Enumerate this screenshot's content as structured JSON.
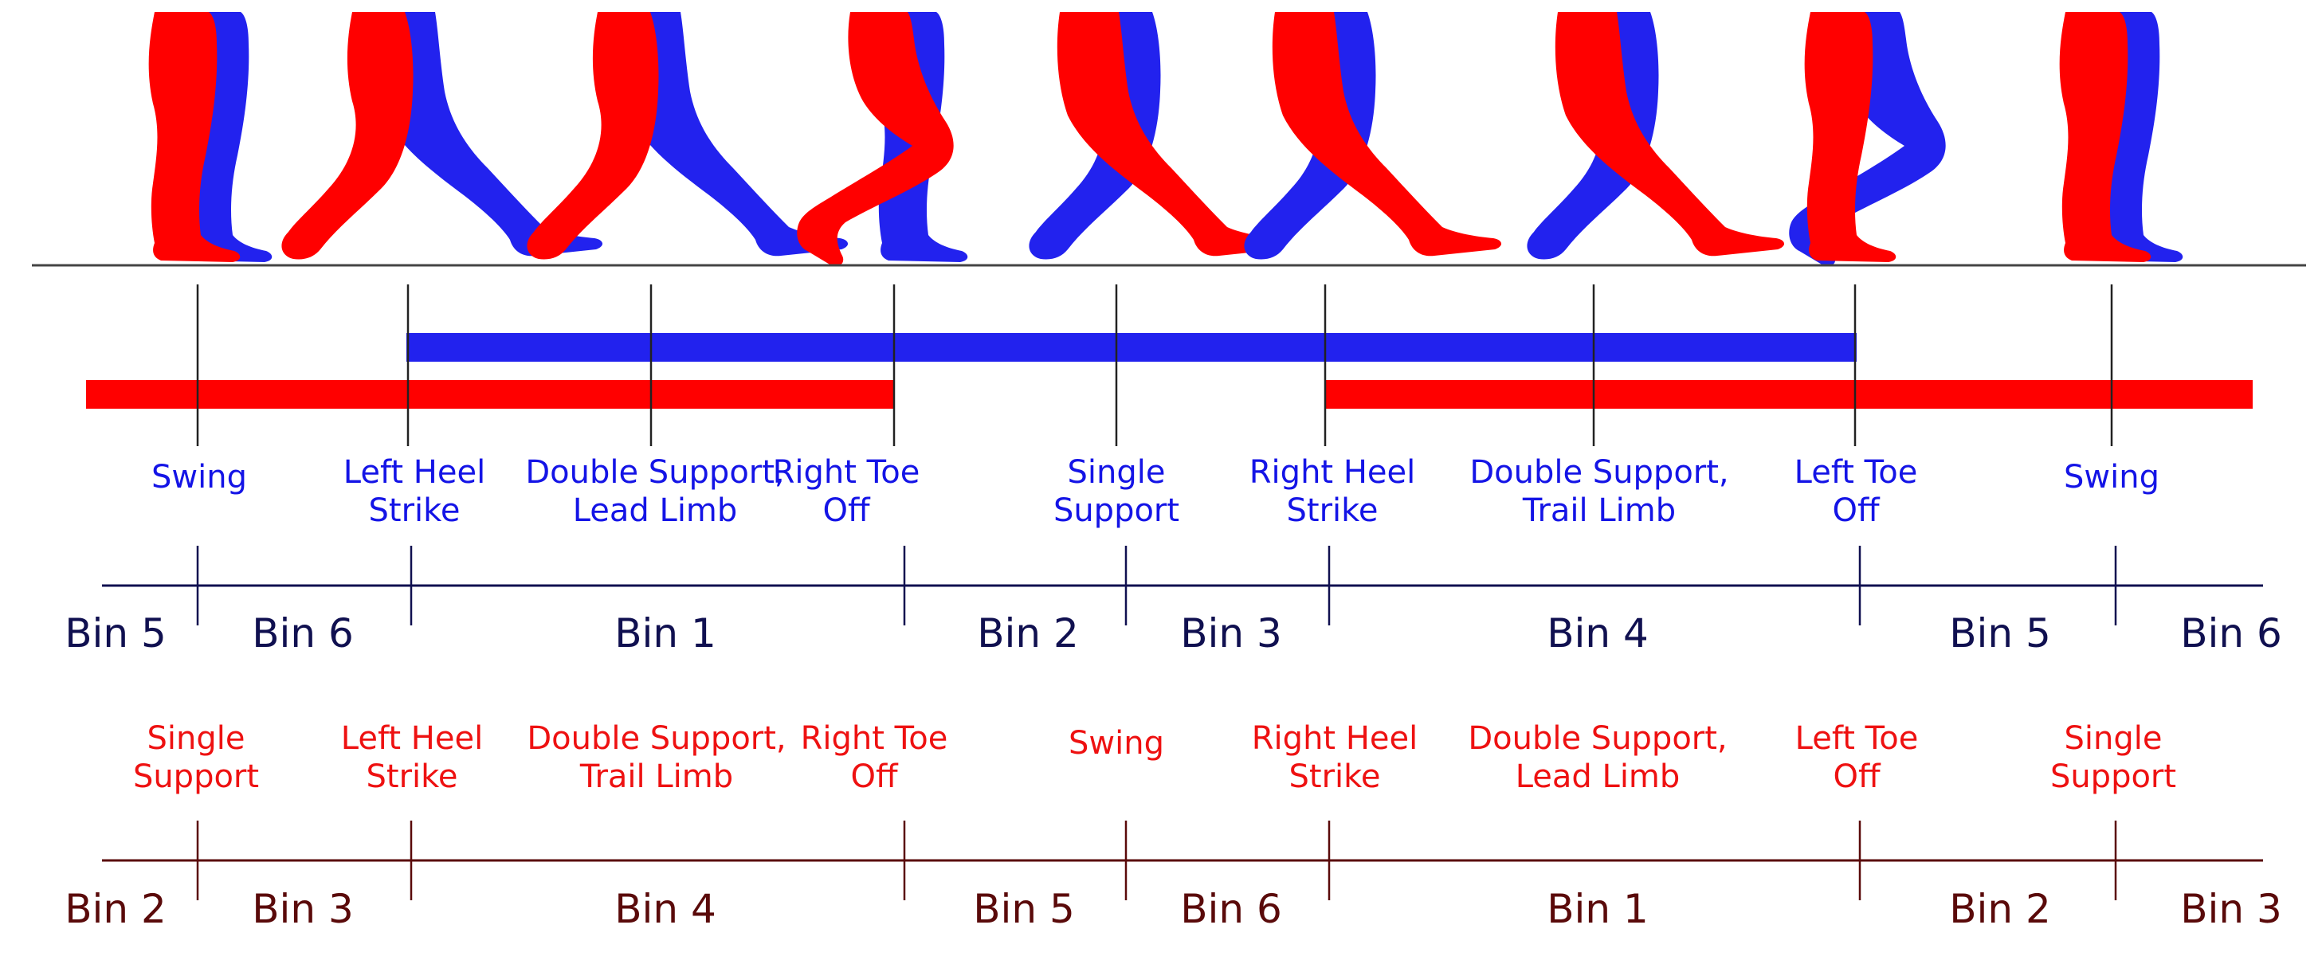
{
  "colors": {
    "left_limb": "#ff0000",
    "right_limb": "#2222ee",
    "blue_text": "#1414e6",
    "red_text": "#ee1111",
    "navy": "#101050",
    "maroon": "#5a0a0a",
    "ground": "#444444"
  },
  "figures": [
    {
      "icon": "legs-swing-icon"
    },
    {
      "icon": "legs-left-heel-strike-icon"
    },
    {
      "icon": "legs-double-support-lead-icon"
    },
    {
      "icon": "legs-right-toe-off-icon"
    },
    {
      "icon": "legs-single-support-icon"
    },
    {
      "icon": "legs-right-heel-strike-icon"
    },
    {
      "icon": "legs-double-support-trail-icon"
    },
    {
      "icon": "legs-left-toe-off-icon"
    },
    {
      "icon": "legs-swing-end-icon"
    }
  ],
  "blue_phases": [
    [
      "Swing"
    ],
    [
      "Left Heel",
      "Strike"
    ],
    [
      "Double Support,",
      "Lead Limb"
    ],
    [
      "Right Toe",
      "Off"
    ],
    [
      "Single",
      "Support"
    ],
    [
      "Right Heel",
      "Strike"
    ],
    [
      "Double Support,",
      "Trail Limb"
    ],
    [
      "Left Toe",
      "Off"
    ],
    [
      "Swing"
    ]
  ],
  "red_phases": [
    [
      "Single",
      "Support"
    ],
    [
      "Left Heel",
      "Strike"
    ],
    [
      "Double Support,",
      "Trail Limb"
    ],
    [
      "Right Toe",
      "Off"
    ],
    [
      "Swing"
    ],
    [
      "Right Heel",
      "Strike"
    ],
    [
      "Double Support,",
      "Lead Limb"
    ],
    [
      "Left Toe",
      "Off"
    ],
    [
      "Single",
      "Support"
    ]
  ],
  "blue_bins": [
    "Bin 5",
    "Bin 6",
    "Bin 1",
    "Bin 2",
    "Bin 3",
    "Bin 4",
    "Bin 5",
    "Bin 6"
  ],
  "red_bins": [
    "Bin 2",
    "Bin 3",
    "Bin 4",
    "Bin 5",
    "Bin 6",
    "Bin 1",
    "Bin 2",
    "Bin 3"
  ]
}
